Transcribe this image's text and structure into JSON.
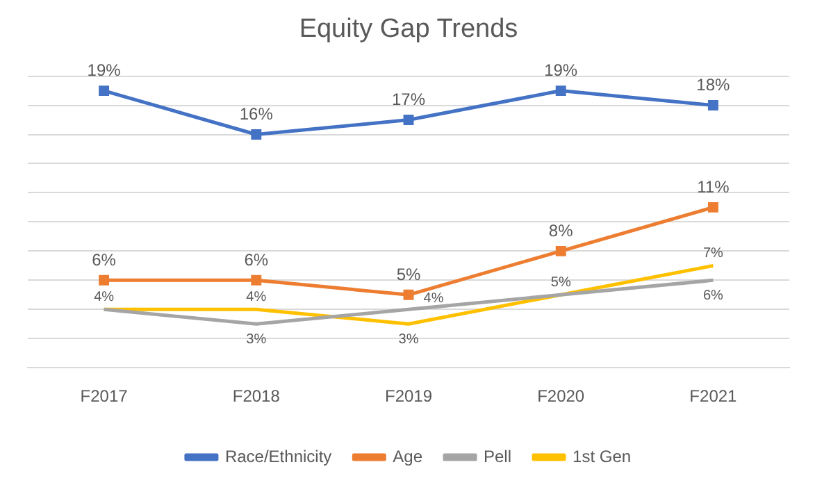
{
  "chart_data": {
    "type": "line",
    "title": "Equity Gap Trends",
    "categories": [
      "F2017",
      "F2018",
      "F2019",
      "F2020",
      "F2021"
    ],
    "series": [
      {
        "name": "Race/Ethnicity",
        "color": "#4472c4",
        "values": [
          19,
          16,
          17,
          19,
          18
        ],
        "value_labels": [
          "19%",
          "16%",
          "17%",
          "19%",
          "18%"
        ],
        "marker": "square"
      },
      {
        "name": "Age",
        "color": "#ed7d31",
        "values": [
          6,
          6,
          5,
          8,
          11
        ],
        "value_labels": [
          "6%",
          "6%",
          "5%",
          "8%",
          "11%"
        ],
        "marker": "square"
      },
      {
        "name": "Pell",
        "color": "#a5a5a5",
        "values": [
          4,
          3,
          4,
          5,
          6
        ],
        "value_labels": [
          "4%",
          "3%",
          "4%",
          "5%",
          "6%"
        ],
        "marker": "none"
      },
      {
        "name": "1st Gen",
        "color": "#ffc000",
        "values": [
          4,
          4,
          3,
          5,
          7
        ],
        "value_labels": [
          null,
          "4%",
          "3%",
          null,
          "7%"
        ],
        "marker": "none"
      }
    ],
    "tick_labels": "x",
    "grid": "y",
    "legend": "bottom",
    "line_style": "solid"
  }
}
